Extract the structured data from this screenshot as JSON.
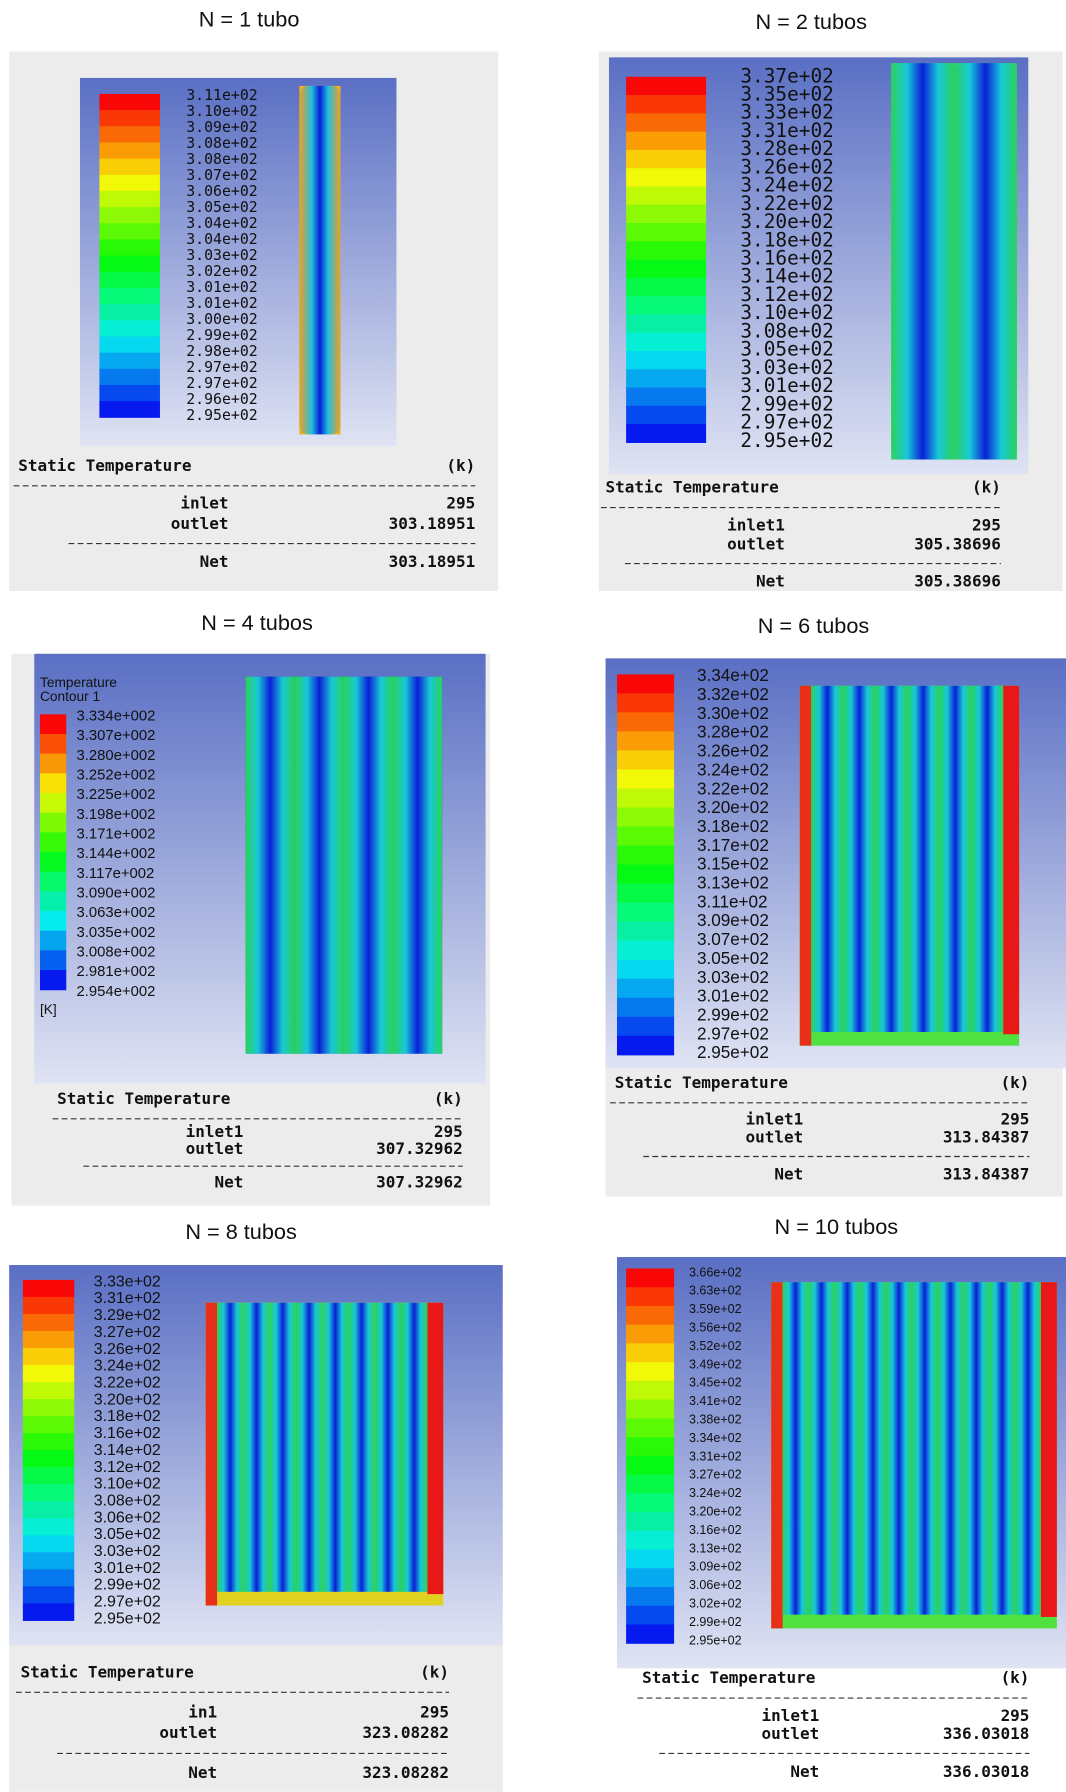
{
  "panels": [
    {
      "title": "N = 1 tubo",
      "legend": {
        "labels": [
          "3.11e+02",
          "3.10e+02",
          "3.09e+02",
          "3.08e+02",
          "3.08e+02",
          "3.07e+02",
          "3.06e+02",
          "3.05e+02",
          "3.04e+02",
          "3.04e+02",
          "3.03e+02",
          "3.02e+02",
          "3.01e+02",
          "3.01e+02",
          "3.00e+02",
          "2.99e+02",
          "2.98e+02",
          "2.97e+02",
          "2.97e+02",
          "2.96e+02",
          "2.95e+02"
        ]
      },
      "table": {
        "header": [
          "Static Temperature",
          "(k)"
        ],
        "rows": [
          [
            "inlet",
            "295"
          ],
          [
            "outlet",
            "303.18951"
          ]
        ],
        "net": [
          "Net",
          "303.18951"
        ]
      }
    },
    {
      "title": "N = 2 tubos",
      "legend": {
        "labels": [
          "3.37e+02",
          "3.35e+02",
          "3.33e+02",
          "3.31e+02",
          "3.28e+02",
          "3.26e+02",
          "3.24e+02",
          "3.22e+02",
          "3.20e+02",
          "3.18e+02",
          "3.16e+02",
          "3.14e+02",
          "3.12e+02",
          "3.10e+02",
          "3.08e+02",
          "3.05e+02",
          "3.03e+02",
          "3.01e+02",
          "2.99e+02",
          "2.97e+02",
          "2.95e+02"
        ]
      },
      "table": {
        "header": [
          "Static Temperature",
          "(k)"
        ],
        "rows": [
          [
            "inlet1",
            "295"
          ],
          [
            "outlet",
            "305.38696"
          ]
        ],
        "net": [
          "Net",
          "305.38696"
        ]
      }
    },
    {
      "title": "N = 4 tubos",
      "legend": {
        "header": [
          "Temperature",
          "Contour 1"
        ],
        "labels": [
          "3.334e+002",
          "3.307e+002",
          "3.280e+002",
          "3.252e+002",
          "3.225e+002",
          "3.198e+002",
          "3.171e+002",
          "3.144e+002",
          "3.117e+002",
          "3.090e+002",
          "3.063e+002",
          "3.035e+002",
          "3.008e+002",
          "2.981e+002",
          "2.954e+002"
        ],
        "unit": "[K]"
      },
      "table": {
        "header": [
          "Static Temperature",
          "(k)"
        ],
        "rows": [
          [
            "inlet1",
            "295"
          ],
          [
            "outlet",
            "307.32962"
          ]
        ],
        "net": [
          "Net",
          "307.32962"
        ]
      }
    },
    {
      "title": "N = 6 tubos",
      "legend": {
        "labels": [
          "3.34e+02",
          "3.32e+02",
          "3.30e+02",
          "3.28e+02",
          "3.26e+02",
          "3.24e+02",
          "3.22e+02",
          "3.20e+02",
          "3.18e+02",
          "3.17e+02",
          "3.15e+02",
          "3.13e+02",
          "3.11e+02",
          "3.09e+02",
          "3.07e+02",
          "3.05e+02",
          "3.03e+02",
          "3.01e+02",
          "2.99e+02",
          "2.97e+02",
          "2.95e+02"
        ]
      },
      "table": {
        "header": [
          "Static Temperature",
          "(k)"
        ],
        "rows": [
          [
            "inlet1",
            "295"
          ],
          [
            "outlet",
            "313.84387"
          ]
        ],
        "net": [
          "Net",
          "313.84387"
        ]
      }
    },
    {
      "title": "N = 8 tubos",
      "legend": {
        "labels": [
          "3.33e+02",
          "3.31e+02",
          "3.29e+02",
          "3.27e+02",
          "3.26e+02",
          "3.24e+02",
          "3.22e+02",
          "3.20e+02",
          "3.18e+02",
          "3.16e+02",
          "3.14e+02",
          "3.12e+02",
          "3.10e+02",
          "3.08e+02",
          "3.06e+02",
          "3.05e+02",
          "3.03e+02",
          "3.01e+02",
          "2.99e+02",
          "2.97e+02",
          "2.95e+02"
        ]
      },
      "table": {
        "header": [
          "Static Temperature",
          "(k)"
        ],
        "rows": [
          [
            "in1",
            "295"
          ],
          [
            "outlet",
            "323.08282"
          ]
        ],
        "net": [
          "Net",
          "323.08282"
        ]
      }
    },
    {
      "title": "N = 10 tubos",
      "legend": {
        "labels": [
          "3.66e+02",
          "3.63e+02",
          "3.59e+02",
          "3.56e+02",
          "3.52e+02",
          "3.49e+02",
          "3.45e+02",
          "3.41e+02",
          "3.38e+02",
          "3.34e+02",
          "3.31e+02",
          "3.27e+02",
          "3.24e+02",
          "3.20e+02",
          "3.16e+02",
          "3.13e+02",
          "3.09e+02",
          "3.06e+02",
          "3.02e+02",
          "2.99e+02",
          "2.95e+02"
        ]
      },
      "table": {
        "header": [
          "Static Temperature",
          "(k)"
        ],
        "rows": [
          [
            "inlet1",
            "295"
          ],
          [
            "outlet",
            "336.03018"
          ]
        ],
        "net": [
          "Net",
          "336.03018"
        ]
      }
    }
  ]
}
